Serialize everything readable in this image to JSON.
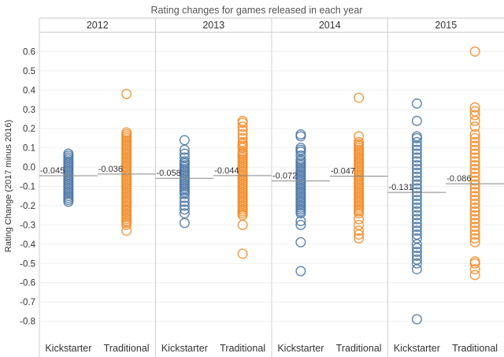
{
  "chart_data": {
    "type": "scatter",
    "title": "Rating changes for games released in each year",
    "ylabel": "Rating Change (2017 minus 2016)",
    "ylim": [
      -0.9,
      0.7
    ],
    "yticks": [
      0.6,
      0.5,
      0.4,
      0.3,
      0.2,
      0.1,
      0.0,
      -0.1,
      -0.2,
      -0.3,
      -0.4,
      -0.5,
      -0.6,
      -0.7,
      -0.8
    ],
    "ytick_labels": [
      "0.6",
      "0.5",
      "0.4",
      "0.3",
      "0.2",
      "0.1",
      "0.0",
      "-0.1",
      "-0.2",
      "-0.3",
      "-0.4",
      "-0.5",
      "-0.6",
      "-0.7",
      "-0.8"
    ],
    "grid": "horizontal",
    "colors": {
      "Kickstarter": "#4e79a7",
      "Traditional": "#f28e2b",
      "mean_line": "#888888"
    },
    "panels": [
      {
        "year": "2012",
        "groups": [
          {
            "name": "Kickstarter",
            "mean": -0.045,
            "mean_label": "-0.045",
            "values": [
              0.07,
              0.06,
              0.05,
              0.04,
              0.03,
              0.02,
              0.01,
              0.0,
              -0.01,
              -0.02,
              -0.03,
              -0.04,
              -0.05,
              -0.06,
              -0.07,
              -0.08,
              -0.09,
              -0.1,
              -0.11,
              -0.12,
              -0.13,
              -0.14,
              -0.15,
              -0.16,
              -0.17,
              -0.18
            ]
          },
          {
            "name": "Traditional",
            "mean": -0.036,
            "mean_label": "-0.036",
            "values": [
              0.38,
              0.18,
              0.17,
              0.16,
              0.15,
              0.14,
              0.13,
              0.12,
              0.11,
              0.1,
              0.09,
              0.08,
              0.07,
              0.06,
              0.05,
              0.04,
              0.03,
              0.02,
              0.01,
              0.0,
              -0.01,
              -0.02,
              -0.03,
              -0.04,
              -0.05,
              -0.06,
              -0.07,
              -0.08,
              -0.09,
              -0.1,
              -0.11,
              -0.12,
              -0.13,
              -0.14,
              -0.15,
              -0.16,
              -0.17,
              -0.18,
              -0.19,
              -0.2,
              -0.21,
              -0.22,
              -0.23,
              -0.24,
              -0.25,
              -0.26,
              -0.27,
              -0.28,
              -0.29,
              -0.3,
              -0.33
            ]
          }
        ]
      },
      {
        "year": "2013",
        "groups": [
          {
            "name": "Kickstarter",
            "mean": -0.058,
            "mean_label": "-0.058",
            "values": [
              0.14,
              0.09,
              0.07,
              0.05,
              0.03,
              0.02,
              0.01,
              0.0,
              -0.01,
              -0.02,
              -0.03,
              -0.04,
              -0.05,
              -0.06,
              -0.07,
              -0.08,
              -0.09,
              -0.1,
              -0.11,
              -0.12,
              -0.13,
              -0.14,
              -0.16,
              -0.18,
              -0.2,
              -0.22,
              -0.24,
              -0.29
            ]
          },
          {
            "name": "Traditional",
            "mean": -0.044,
            "mean_label": "-0.044",
            "values": [
              0.24,
              0.23,
              0.21,
              0.19,
              0.17,
              0.15,
              0.13,
              0.12,
              0.11,
              0.1,
              0.08,
              0.07,
              0.06,
              0.05,
              0.04,
              0.03,
              0.02,
              0.01,
              0.0,
              -0.01,
              -0.02,
              -0.03,
              -0.04,
              -0.05,
              -0.06,
              -0.07,
              -0.08,
              -0.09,
              -0.1,
              -0.11,
              -0.12,
              -0.13,
              -0.14,
              -0.15,
              -0.16,
              -0.17,
              -0.18,
              -0.19,
              -0.2,
              -0.21,
              -0.22,
              -0.23,
              -0.24,
              -0.25,
              -0.3,
              -0.45
            ]
          }
        ]
      },
      {
        "year": "2014",
        "groups": [
          {
            "name": "Kickstarter",
            "mean": -0.072,
            "mean_label": "-0.072",
            "values": [
              0.17,
              0.16,
              0.1,
              0.09,
              0.08,
              0.06,
              0.04,
              0.03,
              0.02,
              0.01,
              0.0,
              -0.01,
              -0.02,
              -0.03,
              -0.04,
              -0.05,
              -0.06,
              -0.07,
              -0.08,
              -0.09,
              -0.1,
              -0.11,
              -0.12,
              -0.13,
              -0.14,
              -0.15,
              -0.16,
              -0.17,
              -0.18,
              -0.19,
              -0.2,
              -0.21,
              -0.22,
              -0.23,
              -0.24,
              -0.28,
              -0.3,
              -0.39,
              -0.54
            ]
          },
          {
            "name": "Traditional",
            "mean": -0.047,
            "mean_label": "-0.047",
            "values": [
              0.36,
              0.16,
              0.13,
              0.12,
              0.11,
              0.1,
              0.09,
              0.08,
              0.07,
              0.06,
              0.05,
              0.04,
              0.03,
              0.02,
              0.01,
              0.0,
              -0.01,
              -0.02,
              -0.03,
              -0.04,
              -0.05,
              -0.06,
              -0.07,
              -0.08,
              -0.09,
              -0.1,
              -0.11,
              -0.12,
              -0.13,
              -0.14,
              -0.15,
              -0.16,
              -0.17,
              -0.18,
              -0.19,
              -0.2,
              -0.21,
              -0.22,
              -0.23,
              -0.24,
              -0.27,
              -0.3,
              -0.33,
              -0.35,
              -0.37
            ]
          }
        ]
      },
      {
        "year": "2015",
        "groups": [
          {
            "name": "Kickstarter",
            "mean": -0.131,
            "mean_label": "-0.131",
            "values": [
              0.33,
              0.24,
              0.16,
              0.15,
              0.13,
              0.11,
              0.09,
              0.07,
              0.05,
              0.03,
              0.01,
              -0.01,
              -0.03,
              -0.05,
              -0.07,
              -0.09,
              -0.11,
              -0.13,
              -0.15,
              -0.17,
              -0.19,
              -0.21,
              -0.23,
              -0.25,
              -0.27,
              -0.29,
              -0.31,
              -0.33,
              -0.35,
              -0.37,
              -0.4,
              -0.42,
              -0.44,
              -0.46,
              -0.48,
              -0.5,
              -0.53,
              -0.79
            ]
          },
          {
            "name": "Traditional",
            "mean": -0.086,
            "mean_label": "-0.086",
            "values": [
              0.6,
              0.31,
              0.29,
              0.27,
              0.24,
              0.21,
              0.17,
              0.15,
              0.13,
              0.11,
              0.09,
              0.07,
              0.05,
              0.03,
              0.01,
              -0.01,
              -0.03,
              -0.05,
              -0.07,
              -0.09,
              -0.11,
              -0.13,
              -0.15,
              -0.17,
              -0.19,
              -0.21,
              -0.23,
              -0.25,
              -0.27,
              -0.29,
              -0.31,
              -0.33,
              -0.35,
              -0.37,
              -0.39,
              -0.49,
              -0.5,
              -0.53,
              -0.56
            ]
          }
        ]
      }
    ]
  }
}
